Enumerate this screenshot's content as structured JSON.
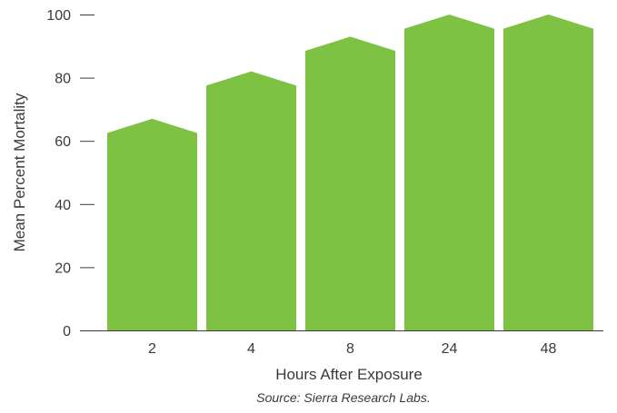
{
  "chart_data": {
    "type": "bar",
    "categories": [
      "2",
      "4",
      "8",
      "24",
      "48"
    ],
    "values": [
      67,
      82,
      93,
      100,
      100
    ],
    "shoulder_values": [
      62.5,
      77.5,
      88.5,
      95.5,
      95.5
    ],
    "title": "",
    "xlabel": "Hours After Exposure",
    "ylabel": "Mean Percent Mortality",
    "ylim": [
      0,
      100
    ],
    "yticks": [
      0,
      20,
      40,
      60,
      80,
      100
    ],
    "grid": false,
    "legend": "none",
    "bar_color": "#7dc242",
    "axis_color": "#3a3a3a"
  },
  "source": "Source: Sierra Research Labs."
}
